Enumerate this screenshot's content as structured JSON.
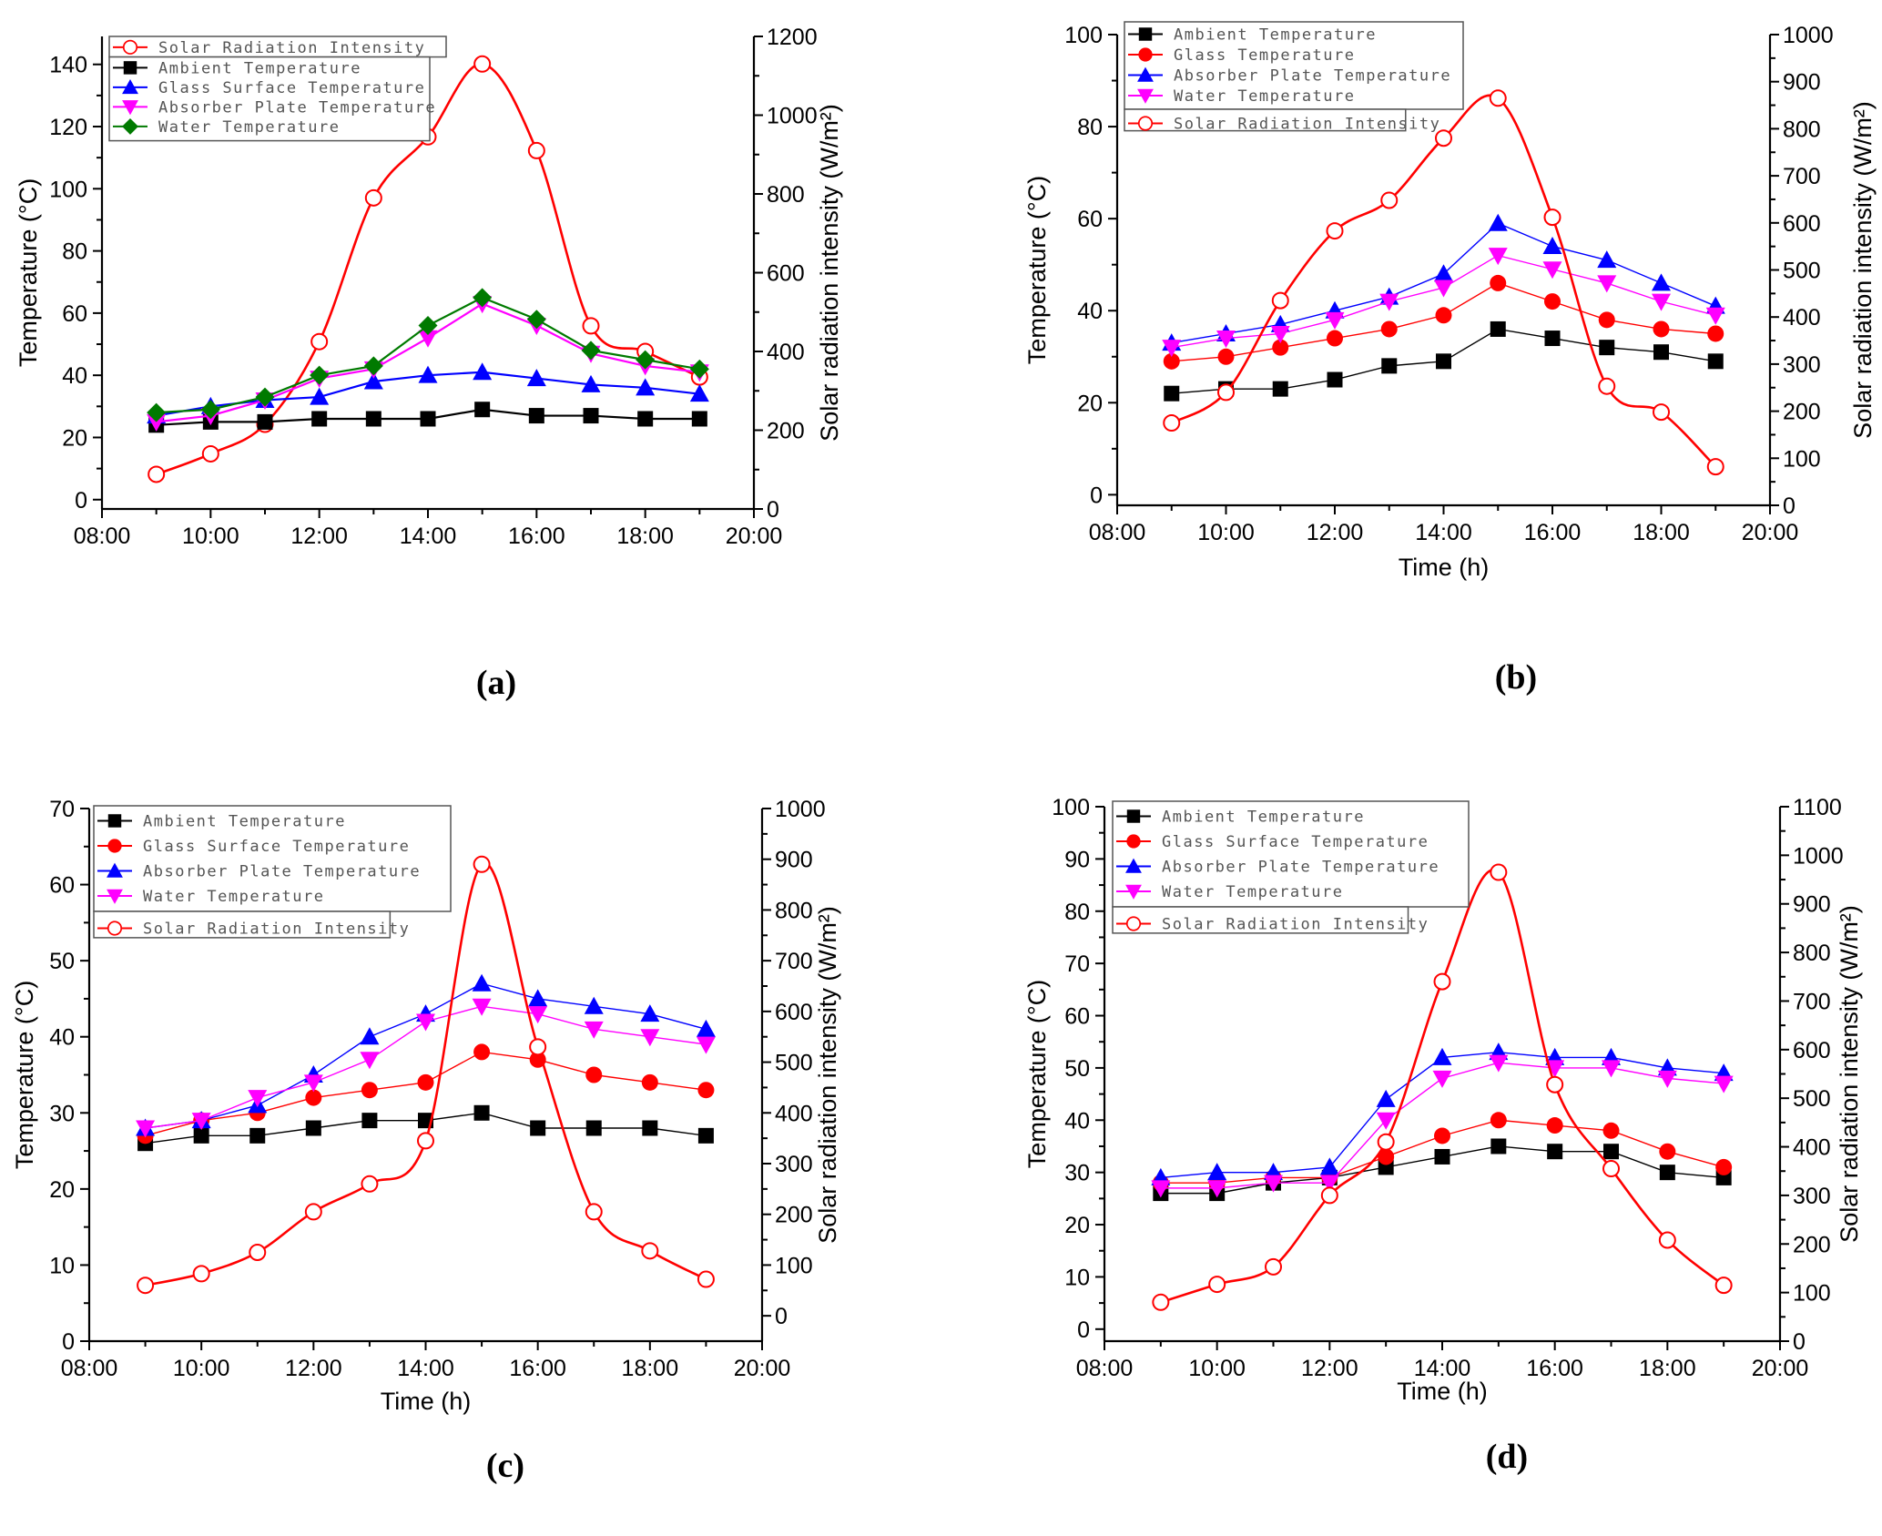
{
  "figure": {
    "panel_labels": [
      "(a)",
      "(b)",
      "(c)",
      "(d)"
    ]
  },
  "chart_data": [
    {
      "type": "line",
      "panel": "(a)",
      "x": [
        "09:00",
        "10:00",
        "11:00",
        "12:00",
        "13:00",
        "14:00",
        "15:00",
        "16:00",
        "17:00",
        "18:00",
        "19:00"
      ],
      "x_ticks": [
        "08:00",
        "10:00",
        "12:00",
        "14:00",
        "16:00",
        "18:00",
        "20:00"
      ],
      "xlabel": "",
      "ylabel": "Temperature (°C)",
      "y2label": "Solar radiation intensity (W/m²)",
      "ylim": [
        -3,
        149
      ],
      "y_ticks": [
        0,
        20,
        40,
        60,
        80,
        100,
        120,
        140
      ],
      "y2lim": [
        0,
        1200
      ],
      "y2_ticks": [
        0,
        200,
        400,
        600,
        800,
        1000,
        1200
      ],
      "grid": false,
      "legend_position": "top-left",
      "series": [
        {
          "name": "Solar Radiation Intensity",
          "axis": "right",
          "color": "#ff0000",
          "marker": "open-circle",
          "smooth": true,
          "values": [
            88,
            140,
            215,
            425,
            790,
            945,
            1130,
            910,
            465,
            400,
            335
          ]
        },
        {
          "name": "Ambient Temperature",
          "axis": "left",
          "color": "#000000",
          "marker": "square",
          "values": [
            24,
            25,
            25,
            26,
            26,
            26,
            29,
            27,
            27,
            26,
            26
          ]
        },
        {
          "name": "Glass Surface Temperature",
          "axis": "left",
          "color": "#0000ff",
          "marker": "triangle-up",
          "values": [
            27,
            30,
            32,
            33,
            38,
            40,
            41,
            39,
            37,
            36,
            34
          ]
        },
        {
          "name": "Absorber Plate Temperature",
          "axis": "left",
          "color": "#ff00ff",
          "marker": "triangle-down",
          "values": [
            25,
            27,
            32,
            39,
            42,
            52,
            63,
            56,
            47,
            43,
            41
          ]
        },
        {
          "name": "Water Temperature",
          "axis": "left",
          "color": "#007a00",
          "marker": "diamond",
          "values": [
            28,
            29,
            33,
            40,
            43,
            56,
            65,
            58,
            48,
            45,
            42
          ]
        }
      ]
    },
    {
      "type": "line",
      "panel": "(b)",
      "x": [
        "09:00",
        "10:00",
        "11:00",
        "12:00",
        "13:00",
        "14:00",
        "15:00",
        "16:00",
        "17:00",
        "18:00",
        "19:00"
      ],
      "x_ticks": [
        "08:00",
        "10:00",
        "12:00",
        "14:00",
        "16:00",
        "18:00",
        "20:00"
      ],
      "xlabel": "Time (h)",
      "ylabel": "Temperature (°C)",
      "y2label": "Solar radiation intensity (W/m²)",
      "ylim": [
        -2.3,
        100
      ],
      "y_ticks": [
        0,
        20,
        40,
        60,
        80,
        100
      ],
      "y2lim": [
        0,
        1000
      ],
      "y2_ticks": [
        0,
        100,
        200,
        300,
        400,
        500,
        600,
        700,
        800,
        900,
        1000
      ],
      "grid": false,
      "legend_position": "top-left",
      "series": [
        {
          "name": "Ambient Temperature",
          "axis": "left",
          "color": "#000000",
          "marker": "square",
          "values": [
            22,
            23,
            23,
            25,
            28,
            29,
            36,
            34,
            32,
            31,
            29
          ]
        },
        {
          "name": "Glass Temperature",
          "axis": "left",
          "color": "#ff0000",
          "marker": "circle",
          "values": [
            29,
            30,
            32,
            34,
            36,
            39,
            46,
            42,
            38,
            36,
            35
          ]
        },
        {
          "name": "Absorber Plate Temperature",
          "axis": "left",
          "color": "#0000ff",
          "marker": "triangle-up",
          "values": [
            33,
            35,
            37,
            40,
            43,
            48,
            59,
            54,
            51,
            46,
            41
          ]
        },
        {
          "name": "Water Temperature",
          "axis": "left",
          "color": "#ff00ff",
          "marker": "triangle-down",
          "values": [
            32,
            34,
            35,
            38,
            42,
            45,
            52,
            49,
            46,
            42,
            39
          ]
        },
        {
          "name": "Solar Radiation Intensity",
          "axis": "right",
          "color": "#ff0000",
          "marker": "open-circle",
          "smooth": true,
          "values": [
            175,
            240,
            435,
            583,
            648,
            780,
            865,
            612,
            253,
            198,
            82
          ]
        }
      ]
    },
    {
      "type": "line",
      "panel": "(c)",
      "x": [
        "09:00",
        "10:00",
        "11:00",
        "12:00",
        "13:00",
        "14:00",
        "15:00",
        "16:00",
        "17:00",
        "18:00",
        "19:00"
      ],
      "x_ticks": [
        "08:00",
        "10:00",
        "12:00",
        "14:00",
        "16:00",
        "18:00",
        "20:00"
      ],
      "xlabel": "Time (h)",
      "ylabel": "Temperature (°C)",
      "y2label": "Solar radiation intensity (W/m²)",
      "ylim": [
        0,
        70
      ],
      "y_ticks": [
        0,
        10,
        20,
        30,
        40,
        50,
        60,
        70
      ],
      "y2lim": [
        -50,
        1000
      ],
      "y2_ticks": [
        0,
        100,
        200,
        300,
        400,
        500,
        600,
        700,
        800,
        900,
        1000
      ],
      "grid": false,
      "legend_position": "top-left",
      "series": [
        {
          "name": "Ambient Temperature",
          "axis": "left",
          "color": "#000000",
          "marker": "square",
          "values": [
            26,
            27,
            27,
            28,
            29,
            29,
            30,
            28,
            28,
            28,
            27
          ]
        },
        {
          "name": "Glass Surface Temperature",
          "axis": "left",
          "color": "#ff0000",
          "marker": "circle",
          "values": [
            27,
            29,
            30,
            32,
            33,
            34,
            38,
            37,
            35,
            34,
            33
          ]
        },
        {
          "name": "Absorber Plate Temperature",
          "axis": "left",
          "color": "#0000ff",
          "marker": "triangle-up",
          "values": [
            28,
            29,
            31,
            35,
            40,
            43,
            47,
            45,
            44,
            43,
            41
          ]
        },
        {
          "name": "Water Temperature",
          "axis": "left",
          "color": "#ff00ff",
          "marker": "triangle-down",
          "values": [
            28,
            29,
            32,
            34,
            37,
            42,
            44,
            43,
            41,
            40,
            39
          ]
        },
        {
          "name": "Solar Radiation Intensity",
          "axis": "right",
          "color": "#ff0000",
          "marker": "open-circle",
          "smooth": true,
          "values": [
            60,
            83,
            125,
            205,
            260,
            345,
            890,
            530,
            205,
            128,
            72
          ]
        }
      ]
    },
    {
      "type": "line",
      "panel": "(d)",
      "x": [
        "09:00",
        "10:00",
        "11:00",
        "12:00",
        "13:00",
        "14:00",
        "15:00",
        "16:00",
        "17:00",
        "18:00",
        "19:00"
      ],
      "x_ticks": [
        "08:00",
        "10:00",
        "12:00",
        "14:00",
        "16:00",
        "18:00",
        "20:00"
      ],
      "xlabel": "Time (h)",
      "ylabel": "Temperature (°C)",
      "y2label": "Solar radiation intensity (W/m²)",
      "ylim": [
        -2.3,
        100
      ],
      "y_ticks": [
        0,
        10,
        20,
        30,
        40,
        50,
        60,
        70,
        80,
        90,
        100
      ],
      "y2lim": [
        0,
        1100
      ],
      "y2_ticks": [
        0,
        100,
        200,
        300,
        400,
        500,
        600,
        700,
        800,
        900,
        1000,
        1100
      ],
      "grid": false,
      "legend_position": "top-left",
      "series": [
        {
          "name": "Ambient Temperature",
          "axis": "left",
          "color": "#000000",
          "marker": "square",
          "values": [
            26,
            26,
            28,
            29,
            31,
            33,
            35,
            34,
            34,
            30,
            29
          ]
        },
        {
          "name": "Glass Surface Temperature",
          "axis": "left",
          "color": "#ff0000",
          "marker": "circle",
          "values": [
            28,
            28,
            29,
            29,
            33,
            37,
            40,
            39,
            38,
            34,
            31
          ]
        },
        {
          "name": "Absorber Plate Temperature",
          "axis": "left",
          "color": "#0000ff",
          "marker": "triangle-up",
          "values": [
            29,
            30,
            30,
            31,
            44,
            52,
            53,
            52,
            52,
            50,
            49
          ]
        },
        {
          "name": "Water Temperature",
          "axis": "left",
          "color": "#ff00ff",
          "marker": "triangle-down",
          "values": [
            27,
            27,
            28,
            28,
            40,
            48,
            51,
            50,
            50,
            48,
            47
          ]
        },
        {
          "name": "Solar Radiation Intensity",
          "axis": "right",
          "color": "#ff0000",
          "marker": "open-circle",
          "smooth": true,
          "values": [
            80,
            117,
            153,
            300,
            410,
            740,
            965,
            528,
            355,
            208,
            115
          ]
        }
      ]
    }
  ]
}
